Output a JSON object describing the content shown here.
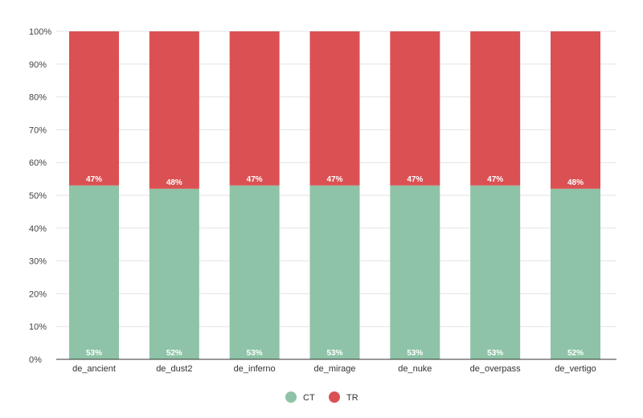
{
  "chart_data": {
    "type": "bar",
    "stacked": true,
    "categories": [
      "de_ancient",
      "de_dust2",
      "de_inferno",
      "de_mirage",
      "de_nuke",
      "de_overpass",
      "de_vertigo"
    ],
    "series": [
      {
        "name": "CT",
        "values": [
          53,
          52,
          53,
          53,
          53,
          53,
          52
        ],
        "labels": [
          "53%",
          "52%",
          "53%",
          "53%",
          "53%",
          "53%",
          "52%"
        ],
        "color": "#8ec3a7"
      },
      {
        "name": "TR",
        "values": [
          47,
          48,
          47,
          47,
          47,
          47,
          48
        ],
        "labels": [
          "47%",
          "48%",
          "47%",
          "47%",
          "47%",
          "47%",
          "48%"
        ],
        "color": "#db5153"
      }
    ],
    "ylim": [
      0,
      100
    ],
    "yticks": [
      0,
      10,
      20,
      30,
      40,
      50,
      60,
      70,
      80,
      90,
      100
    ],
    "ytick_labels": [
      "0%",
      "10%",
      "20%",
      "30%",
      "40%",
      "50%",
      "60%",
      "70%",
      "80%",
      "90%",
      "100%"
    ],
    "grid": true,
    "legend_position": "bottom-center",
    "title": "",
    "xlabel": "",
    "ylabel": ""
  }
}
